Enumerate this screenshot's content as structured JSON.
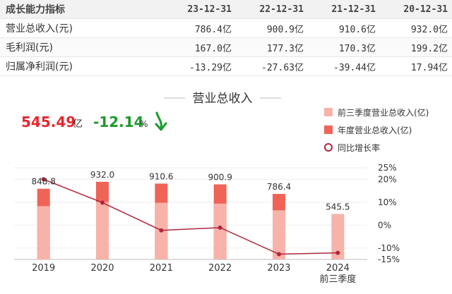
{
  "table": {
    "header": [
      "成长能力指标",
      "23-12-31",
      "22-12-31",
      "21-12-31",
      "20-12-31"
    ],
    "rows": [
      {
        "label": "营业总收入(元)",
        "cells": [
          "786.4亿",
          "900.9亿",
          "910.6亿",
          "932.0亿"
        ]
      },
      {
        "label": "毛利润(元)",
        "cells": [
          "167.0亿",
          "177.3亿",
          "170.3亿",
          "199.2亿"
        ]
      },
      {
        "label": "归属净利润(元)",
        "cells": [
          "-13.29亿",
          "-27.63亿",
          "-39.44亿",
          "17.94亿"
        ]
      }
    ]
  },
  "kpi": {
    "value": "545.49",
    "unit": "亿",
    "change": "-12.14",
    "pct": "%",
    "arrow_icon": "arrow-down-icon",
    "value_color": "#e8262c",
    "change_color": "#1a9a2a"
  },
  "chart_data": {
    "type": "bar",
    "title": "营业总收入",
    "categories": [
      "2019",
      "2020",
      "2021",
      "2022",
      "2023",
      "2024\n前三季度"
    ],
    "series": [
      {
        "name": "前三季度营业总收入(亿)",
        "type": "bar",
        "color": "#f7b3aa",
        "values": [
          640,
          690,
          680,
          670,
          590,
          545.5
        ]
      },
      {
        "name": "年度营业总收入(亿)",
        "type": "bar",
        "color": "#ef6457",
        "values": [
          848.8,
          932.0,
          910.6,
          900.9,
          786.4,
          null
        ]
      },
      {
        "name": "同比增长率",
        "type": "line",
        "axis": "right",
        "color": "#b0263a",
        "values": [
          20.0,
          9.8,
          -2.3,
          -1.1,
          -12.7,
          -12.1
        ]
      }
    ],
    "data_labels": [
      "848.8",
      "932.0",
      "910.6",
      "900.9",
      "786.4",
      "545.5"
    ],
    "ylim_left": [
      0,
      1100
    ],
    "ylim_right": [
      -15,
      25
    ],
    "right_ticks": [
      {
        "v": 25,
        "label": "25%"
      },
      {
        "v": 20,
        "label": "20%"
      },
      {
        "v": 10,
        "label": "10%"
      },
      {
        "v": 0,
        "label": "0%"
      },
      {
        "v": -10,
        "label": "-10%"
      },
      {
        "v": -15,
        "label": "-15%"
      }
    ],
    "legend_position": "top-right",
    "grid": true
  }
}
